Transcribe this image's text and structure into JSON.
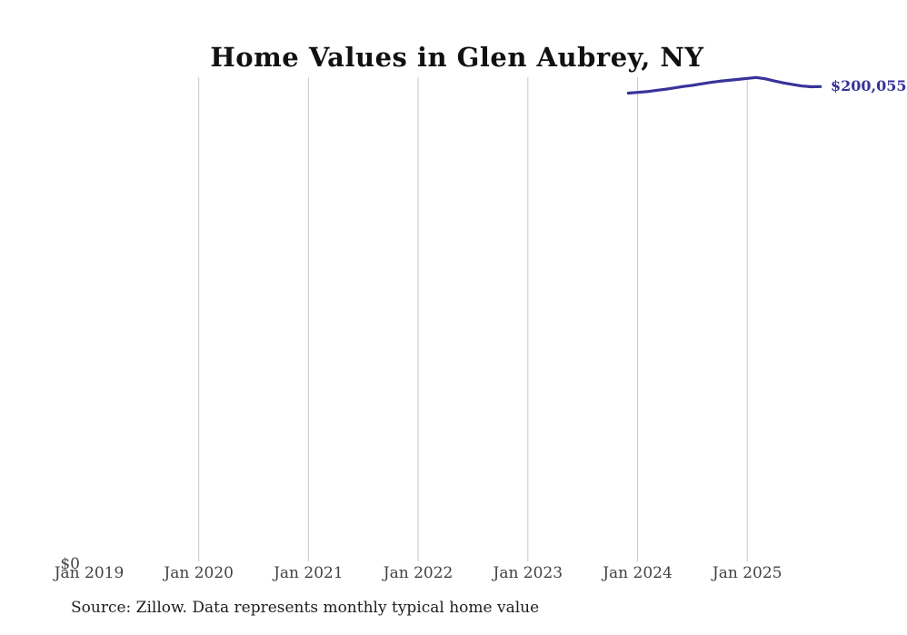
{
  "source_note": "Source: Zillow. Data represents monthly typical home value",
  "chart_data": {
    "type": "line",
    "title": "Home Values in Glen Aubrey, NY",
    "xlabel": "",
    "ylabel": "",
    "y_zero_label": "$0",
    "end_label": "$200,055",
    "ylim": [
      0,
      204000
    ],
    "grid": "vertical-only",
    "legend": "none",
    "x_ticks": [
      {
        "label": "Jan 2019",
        "year": 2019
      },
      {
        "label": "Jan 2020",
        "year": 2020
      },
      {
        "label": "Jan 2021",
        "year": 2021
      },
      {
        "label": "Jan 2022",
        "year": 2022
      },
      {
        "label": "Jan 2023",
        "year": 2023
      },
      {
        "label": "Jan 2024",
        "year": 2024
      },
      {
        "label": "Jan 2025",
        "year": 2025
      }
    ],
    "gridline_years": [
      2020,
      2021,
      2022,
      2023,
      2024,
      2025
    ],
    "series": [
      {
        "points": [
          {
            "date": "2023-12",
            "value": 197300
          },
          {
            "date": "2024-01",
            "value": 197600
          },
          {
            "date": "2024-02",
            "value": 197900
          },
          {
            "date": "2024-03",
            "value": 198400
          },
          {
            "date": "2024-04",
            "value": 198900
          },
          {
            "date": "2024-05",
            "value": 199500
          },
          {
            "date": "2024-06",
            "value": 200100
          },
          {
            "date": "2024-07",
            "value": 200600
          },
          {
            "date": "2024-08",
            "value": 201200
          },
          {
            "date": "2024-09",
            "value": 201800
          },
          {
            "date": "2024-10",
            "value": 202300
          },
          {
            "date": "2024-11",
            "value": 202700
          },
          {
            "date": "2024-12",
            "value": 203100
          },
          {
            "date": "2025-01",
            "value": 203500
          },
          {
            "date": "2025-02",
            "value": 203900
          },
          {
            "date": "2025-03",
            "value": 203300
          },
          {
            "date": "2025-04",
            "value": 202400
          },
          {
            "date": "2025-05",
            "value": 201600
          },
          {
            "date": "2025-06",
            "value": 200900
          },
          {
            "date": "2025-07",
            "value": 200300
          },
          {
            "date": "2025-08",
            "value": 200000
          },
          {
            "date": "2025-09",
            "value": 200055
          }
        ]
      }
    ],
    "colors": {
      "line": "#37339a",
      "gridline": "#c9c9c9",
      "tick_label": "#434343",
      "title": "#111111",
      "source": "#202020"
    }
  }
}
